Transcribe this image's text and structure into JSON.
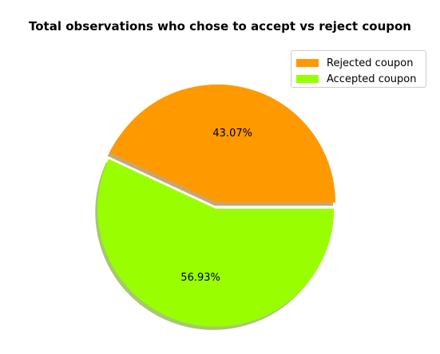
{
  "chart_data": {
    "type": "pie",
    "title": "Total observations who chose to accept vs reject coupon",
    "slices": [
      {
        "name": "Rejected coupon",
        "value": 43.07,
        "label": "43.07%",
        "color": "#ff9900"
      },
      {
        "name": "Accepted coupon",
        "value": 56.93,
        "label": "56.93%",
        "color": "#99ff00"
      }
    ],
    "exploded": "Accepted coupon",
    "shadow": true,
    "legend_position": "top-right"
  }
}
